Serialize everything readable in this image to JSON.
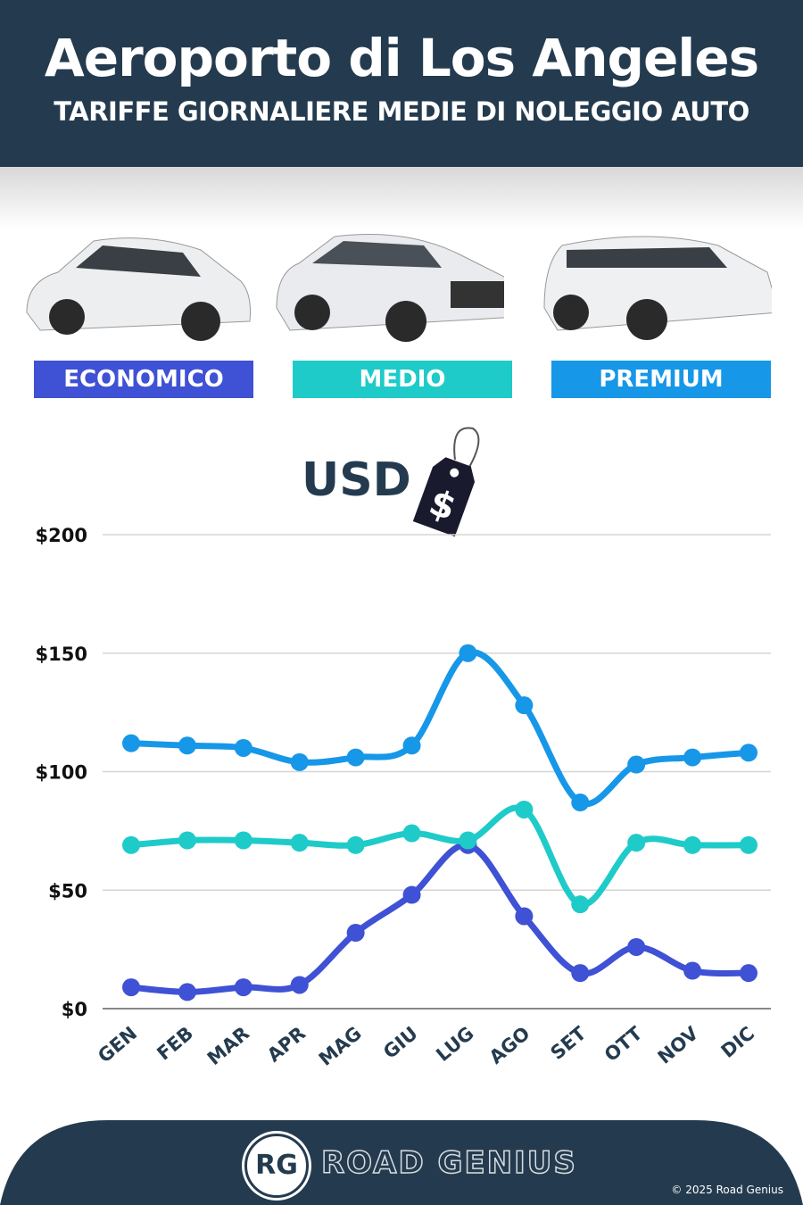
{
  "header": {
    "title": "Aeroporto di Los Angeles",
    "subtitle": "TARIFFE GIORNALIERE MEDIE DI NOLEGGIO AUTO"
  },
  "categories_legend": [
    {
      "label": "ECONOMICO",
      "color": "#3f51d4"
    },
    {
      "label": "MEDIO",
      "color": "#1ecbc9"
    },
    {
      "label": "PREMIUM",
      "color": "#1797e8"
    }
  ],
  "currency": {
    "label": "USD",
    "tag_symbol": "$"
  },
  "chart_data": {
    "type": "line",
    "x": [
      "GEN",
      "FEB",
      "MAR",
      "APR",
      "MAG",
      "GIU",
      "LUG",
      "AGO",
      "SET",
      "OTT",
      "NOV",
      "DIC"
    ],
    "yticks": [
      "$0",
      "$50",
      "$100",
      "$150",
      "$200"
    ],
    "ylim": [
      0,
      200
    ],
    "grid": true,
    "series": [
      {
        "name": "ECONOMICO",
        "color": "#3f51d4",
        "values": [
          9,
          7,
          9,
          10,
          32,
          48,
          69,
          39,
          15,
          26,
          16,
          15
        ]
      },
      {
        "name": "MEDIO",
        "color": "#1ecbc9",
        "values": [
          69,
          71,
          71,
          70,
          69,
          74,
          71,
          84,
          44,
          70,
          69,
          69
        ]
      },
      {
        "name": "PREMIUM",
        "color": "#1797e8",
        "values": [
          112,
          111,
          110,
          104,
          106,
          111,
          150,
          128,
          87,
          103,
          106,
          108
        ]
      }
    ]
  },
  "footer": {
    "logo": "RG",
    "brand": "ROAD GENIUS",
    "copyright": "© 2025 Road Genius"
  },
  "colors": {
    "header": "#243b4f"
  }
}
